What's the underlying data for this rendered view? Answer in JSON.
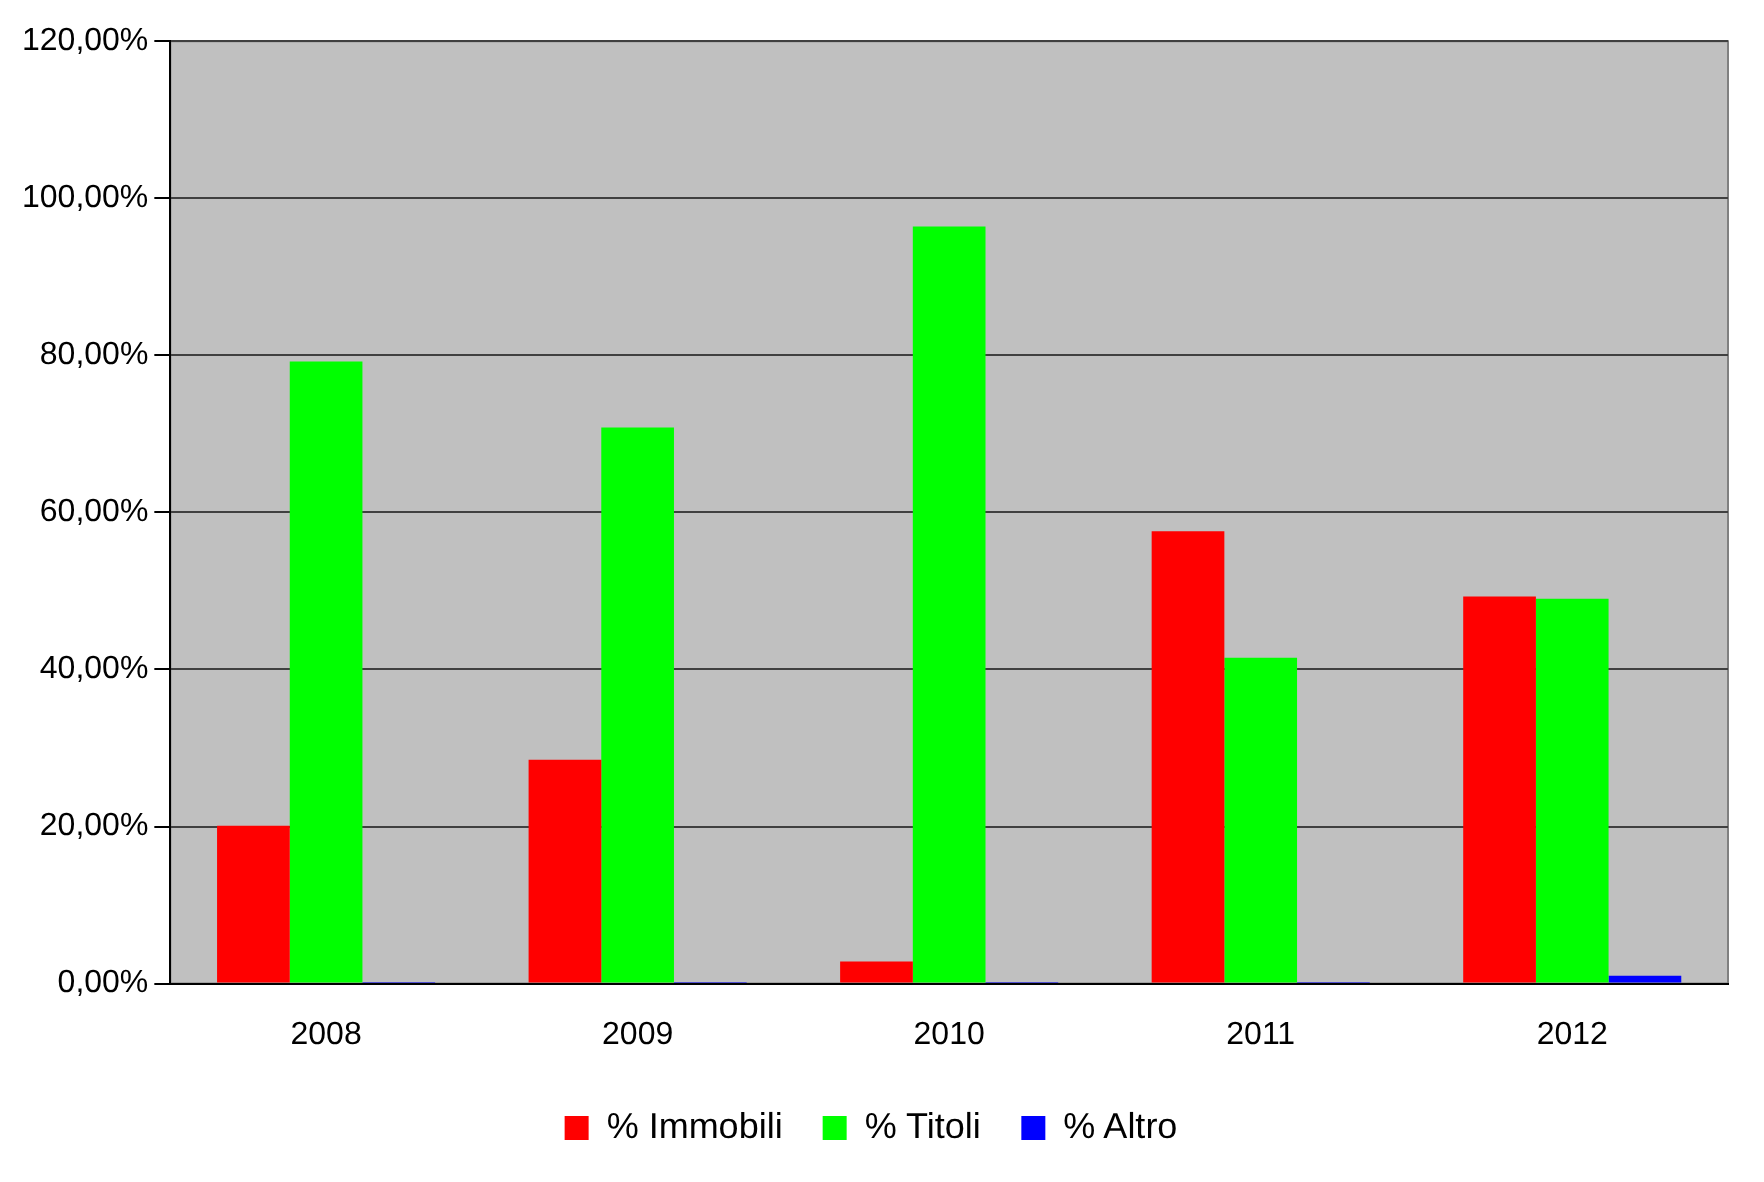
{
  "chart_data": {
    "type": "bar",
    "categories": [
      "2008",
      "2009",
      "2010",
      "2011",
      "2012"
    ],
    "series": [
      {
        "name": "% Immobili",
        "color": "#ff0000",
        "values": [
          20.1,
          28.5,
          2.8,
          57.6,
          49.3
        ]
      },
      {
        "name": "% Titoli",
        "color": "#00ff00",
        "values": [
          79.2,
          70.8,
          96.4,
          41.5,
          49.0
        ]
      },
      {
        "name": "% Altro",
        "color": "#0000ff",
        "values": [
          0.2,
          0.2,
          0.2,
          0.2,
          1.0
        ]
      }
    ],
    "ylim": [
      0,
      120
    ],
    "yticks": [
      {
        "value": 0,
        "label": "0,00%"
      },
      {
        "value": 20,
        "label": "20,00%"
      },
      {
        "value": 40,
        "label": "40,00%"
      },
      {
        "value": 60,
        "label": "60,00%"
      },
      {
        "value": 80,
        "label": "80,00%"
      },
      {
        "value": 100,
        "label": "100,00%"
      },
      {
        "value": 120,
        "label": "120,00%"
      }
    ],
    "grid": "y",
    "legend": "bottom"
  }
}
